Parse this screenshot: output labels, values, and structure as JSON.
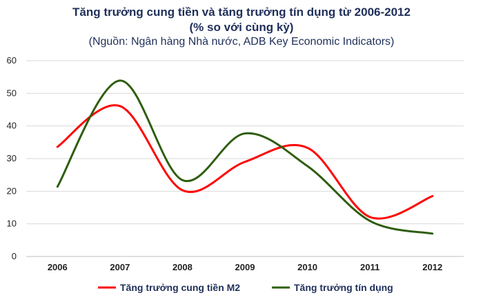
{
  "chart_data": {
    "type": "line",
    "title": "Tăng trưởng cung tiền và tăng trưởng tín dụng từ 2006-2012",
    "subtitle": "(% so với cùng kỳ)",
    "source": "(Nguồn: Ngân hàng Nhà nước, ADB Key Economic Indicators)",
    "categories": [
      "2006",
      "2007",
      "2008",
      "2009",
      "2010",
      "2011",
      "2012"
    ],
    "y_ticks": [
      "0",
      "10",
      "20",
      "30",
      "40",
      "50",
      "60"
    ],
    "ylim": [
      0,
      60
    ],
    "grid": true,
    "legend_position": "bottom",
    "series": [
      {
        "name": "Tăng trưởng cung tiền M2",
        "color": "#ff0000",
        "values": [
          33.6,
          46.1,
          20.3,
          29.0,
          33.3,
          12.1,
          18.5
        ]
      },
      {
        "name": "Tăng trưởng tín dụng",
        "color": "#2e5e0e",
        "values": [
          21.4,
          53.9,
          23.4,
          37.7,
          27.7,
          10.9,
          7.0
        ]
      }
    ]
  }
}
